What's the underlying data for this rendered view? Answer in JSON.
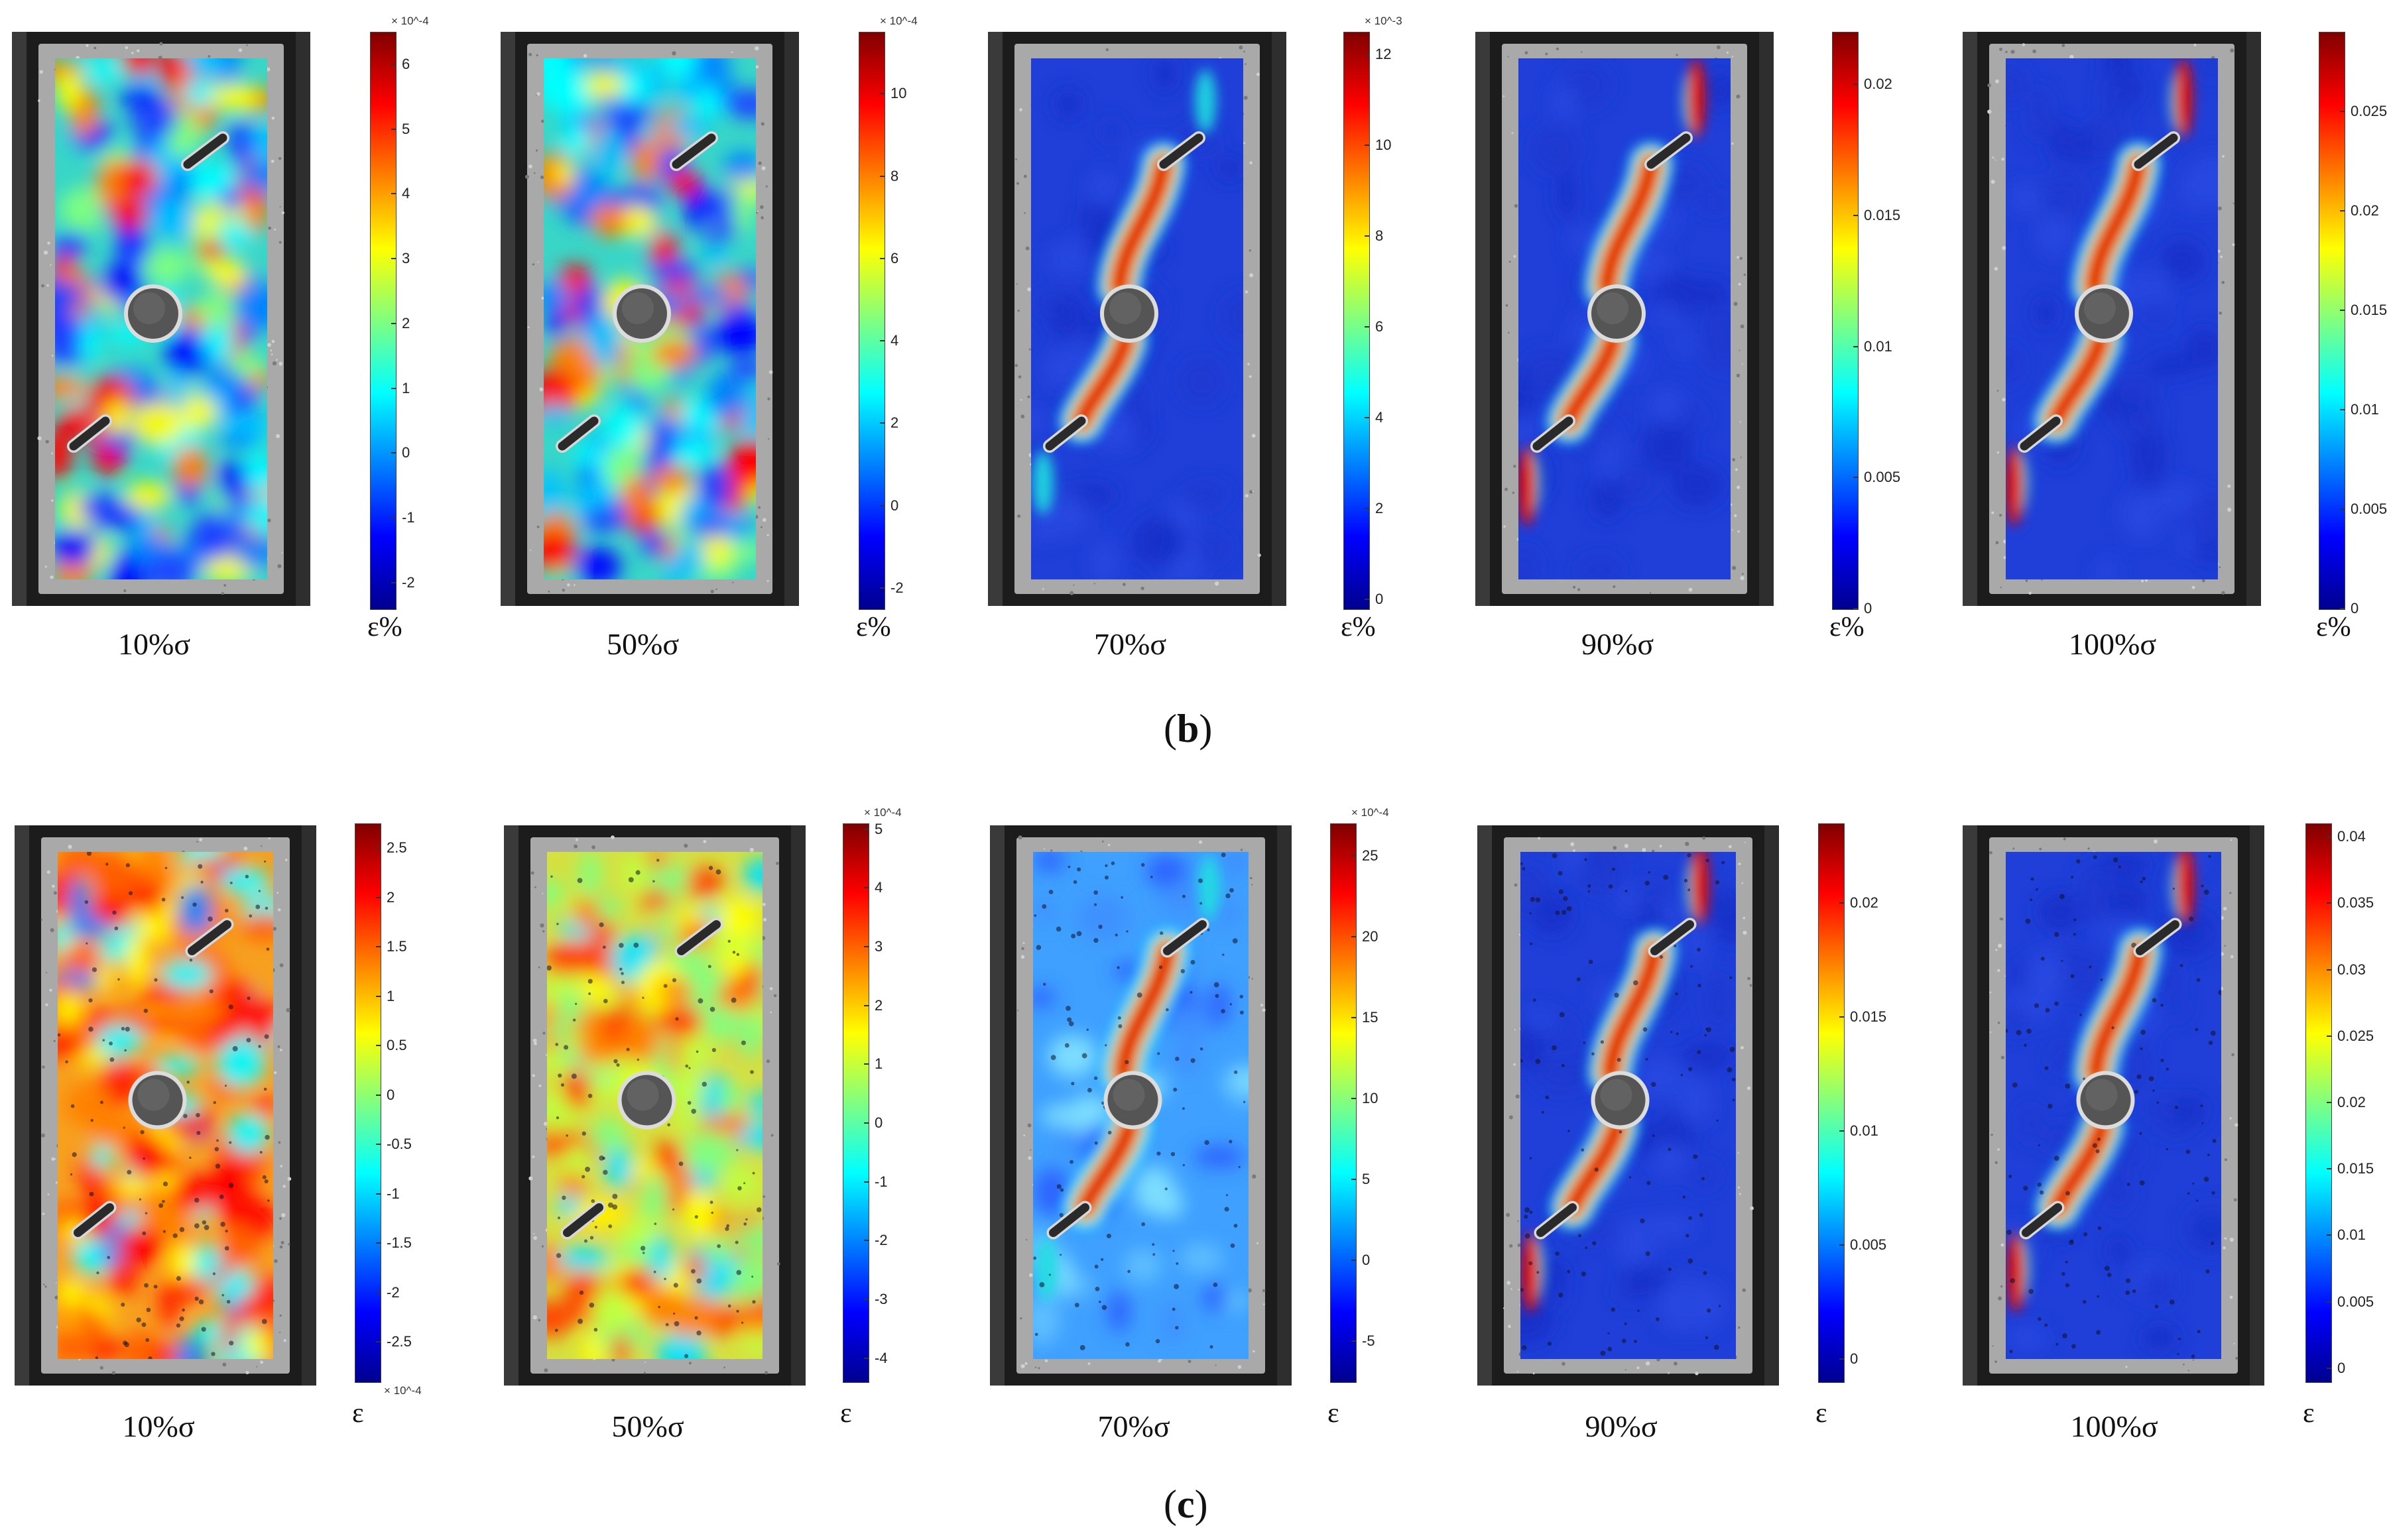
{
  "rows": [
    {
      "label_open": "(",
      "label_letter": "b",
      "label_close": ")",
      "panels": [
        {
          "caption": "10%σ",
          "unit": "ε%",
          "exponent": "× 10^-4",
          "ticks": [
            "6",
            "5",
            "4",
            "3",
            "2",
            "1",
            "0",
            "-1",
            "-2"
          ],
          "tick_values": [
            6,
            5,
            4,
            3,
            2,
            1,
            0,
            -1,
            -2
          ],
          "range": [
            -2.4,
            6.5
          ],
          "strain_pattern": "diffuse-random"
        },
        {
          "caption": "50%σ",
          "unit": "ε%",
          "exponent": "× 10^-4",
          "ticks": [
            "10",
            "8",
            "6",
            "4",
            "2",
            "0",
            "-2"
          ],
          "tick_values": [
            10,
            8,
            6,
            4,
            2,
            0,
            -2
          ],
          "range": [
            -2.5,
            11.5
          ],
          "strain_pattern": "diffuse-random"
        },
        {
          "caption": "70%σ",
          "unit": "ε%",
          "exponent": "× 10^-3",
          "ticks": [
            "12",
            "10",
            "8",
            "6",
            "4",
            "2",
            "0"
          ],
          "tick_values": [
            12,
            10,
            8,
            6,
            4,
            2,
            0
          ],
          "range": [
            -0.2,
            12.5
          ],
          "strain_pattern": "localized-band"
        },
        {
          "caption": "90%σ",
          "unit": "ε%",
          "exponent": "",
          "ticks": [
            "0.02",
            "0.015",
            "0.01",
            "0.005",
            "0"
          ],
          "tick_values": [
            0.02,
            0.015,
            0.01,
            0.005,
            0
          ],
          "range": [
            0,
            0.022
          ],
          "strain_pattern": "localized-band"
        },
        {
          "caption": "100%σ",
          "unit": "ε%",
          "exponent": "",
          "ticks": [
            "0.025",
            "0.02",
            "0.015",
            "0.01",
            "0.005",
            "0"
          ],
          "tick_values": [
            0.025,
            0.02,
            0.015,
            0.01,
            0.005,
            0
          ],
          "range": [
            0,
            0.029
          ],
          "strain_pattern": "localized-band"
        }
      ]
    },
    {
      "label_open": "(",
      "label_letter": "c",
      "label_close": ")",
      "panels": [
        {
          "caption": "10%σ",
          "unit": "ε",
          "exponent": "× 10^-4",
          "exponent_position": "bottom",
          "ticks": [
            "2.5",
            "2",
            "1.5",
            "1",
            "0.5",
            "0",
            "-0.5",
            "-1",
            "-1.5",
            "-2",
            "-2.5"
          ],
          "tick_values": [
            2.5,
            2,
            1.5,
            1,
            0.5,
            0,
            -0.5,
            -1,
            -1.5,
            -2,
            -2.5
          ],
          "range": [
            -2.9,
            2.75
          ],
          "strain_pattern": "diffuse-warm"
        },
        {
          "caption": "50%σ",
          "unit": "ε",
          "exponent": "× 10^-4",
          "exponent_position": "top",
          "ticks": [
            "5",
            "4",
            "3",
            "2",
            "1",
            "0",
            "-1",
            "-2",
            "-3",
            "-4"
          ],
          "tick_values": [
            5,
            4,
            3,
            2,
            1,
            0,
            -1,
            -2,
            -3,
            -4
          ],
          "range": [
            -4.4,
            5.1
          ],
          "strain_pattern": "diffuse-warm"
        },
        {
          "caption": "70%σ",
          "unit": "ε",
          "exponent": "× 10^-4",
          "exponent_position": "top",
          "ticks": [
            "25",
            "20",
            "15",
            "10",
            "5",
            "0",
            "-5"
          ],
          "tick_values": [
            25,
            20,
            15,
            10,
            5,
            0,
            -5
          ],
          "range": [
            -7.5,
            27
          ],
          "strain_pattern": "localized-band"
        },
        {
          "caption": "90%σ",
          "unit": "ε",
          "exponent": "",
          "ticks": [
            "0.02",
            "0.015",
            "0.01",
            "0.005",
            "0"
          ],
          "tick_values": [
            0.02,
            0.015,
            0.01,
            0.005,
            0
          ],
          "range": [
            -0.001,
            0.0235
          ],
          "strain_pattern": "localized-band"
        },
        {
          "caption": "100%σ",
          "unit": "ε",
          "exponent": "",
          "ticks": [
            "0.04",
            "0.035",
            "0.03",
            "0.025",
            "0.02",
            "0.015",
            "0.01",
            "0.005",
            "0"
          ],
          "tick_values": [
            0.04,
            0.035,
            0.03,
            0.025,
            0.02,
            0.015,
            0.01,
            0.005,
            0
          ],
          "range": [
            -0.001,
            0.041
          ],
          "strain_pattern": "localized-band"
        }
      ]
    }
  ],
  "colormap": [
    "#00008f",
    "#0000ff",
    "#0080ff",
    "#00ffff",
    "#80ff80",
    "#ffff00",
    "#ff8000",
    "#ff0000",
    "#800000"
  ]
}
